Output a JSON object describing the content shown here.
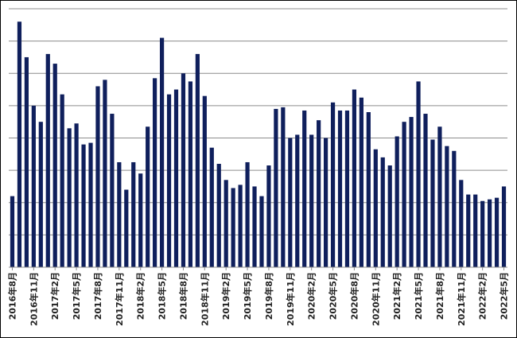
{
  "chart_data": {
    "type": "bar",
    "title": "",
    "xlabel": "",
    "ylabel": "",
    "grid": true,
    "legend": "none",
    "ylim": [
      0,
      8
    ],
    "bar_color": "#0f1f5c",
    "grid_color": "#8c8c8c",
    "categories": [
      "2016年8月",
      "2016年9月",
      "2016年10月",
      "2016年11月",
      "2016年12月",
      "2017年1月",
      "2017年2月",
      "2017年3月",
      "2017年4月",
      "2017年5月",
      "2017年6月",
      "2017年7月",
      "2017年8月",
      "2017年9月",
      "2017年10月",
      "2017年11月",
      "2017年12月",
      "2018年1月",
      "2018年2月",
      "2018年3月",
      "2018年4月",
      "2018年5月",
      "2018年6月",
      "2018年7月",
      "2018年8月",
      "2018年9月",
      "2018年10月",
      "2018年11月",
      "2018年12月",
      "2019年1月",
      "2019年2月",
      "2019年3月",
      "2019年4月",
      "2019年5月",
      "2019年6月",
      "2019年7月",
      "2019年8月",
      "2019年9月",
      "2019年10月",
      "2019年11月",
      "2019年12月",
      "2020年1月",
      "2020年2月",
      "2020年3月",
      "2020年4月",
      "2020年5月",
      "2020年6月",
      "2020年7月",
      "2020年8月",
      "2020年9月",
      "2020年10月",
      "2020年11月",
      "2020年12月",
      "2021年1月",
      "2021年2月",
      "2021年3月",
      "2021年4月",
      "2021年5月",
      "2021年6月",
      "2021年7月",
      "2021年8月",
      "2021年9月",
      "2021年10月",
      "2021年11月",
      "2021年12月",
      "2022年1月",
      "2022年2月",
      "2022年3月",
      "2022年4月",
      "2022年5月"
    ],
    "tick_labels": [
      "2016年8月",
      "2016年11月",
      "2017年2月",
      "2017年5月",
      "2017年8月",
      "2017年11月",
      "2018年2月",
      "2018年5月",
      "2018年8月",
      "2018年11月",
      "2019年2月",
      "2019年5月",
      "2019年8月",
      "2019年11月",
      "2020年2月",
      "2020年5月",
      "2020年8月",
      "2020年11月",
      "2021年2月",
      "2021年5月",
      "2021年8月",
      "2021年11月",
      "2022年2月",
      "2022年5月"
    ],
    "values": [
      2.2,
      7.6,
      6.5,
      5.0,
      4.5,
      6.6,
      6.3,
      5.35,
      4.3,
      4.45,
      3.8,
      3.85,
      5.6,
      5.8,
      4.75,
      3.25,
      2.4,
      3.25,
      2.9,
      4.35,
      5.85,
      7.1,
      5.35,
      5.5,
      6.0,
      5.75,
      6.6,
      5.3,
      3.7,
      3.2,
      2.7,
      2.45,
      2.55,
      3.25,
      2.5,
      2.2,
      3.15,
      4.9,
      4.95,
      4.0,
      4.1,
      4.85,
      4.1,
      4.55,
      4.0,
      5.1,
      4.85,
      4.85,
      5.5,
      5.25,
      4.8,
      3.65,
      3.4,
      3.15,
      4.05,
      4.5,
      4.65,
      5.75,
      4.75,
      3.95,
      4.35,
      3.75,
      3.6,
      2.7,
      2.25,
      2.25,
      2.05,
      2.1,
      2.15,
      2.5
    ]
  }
}
